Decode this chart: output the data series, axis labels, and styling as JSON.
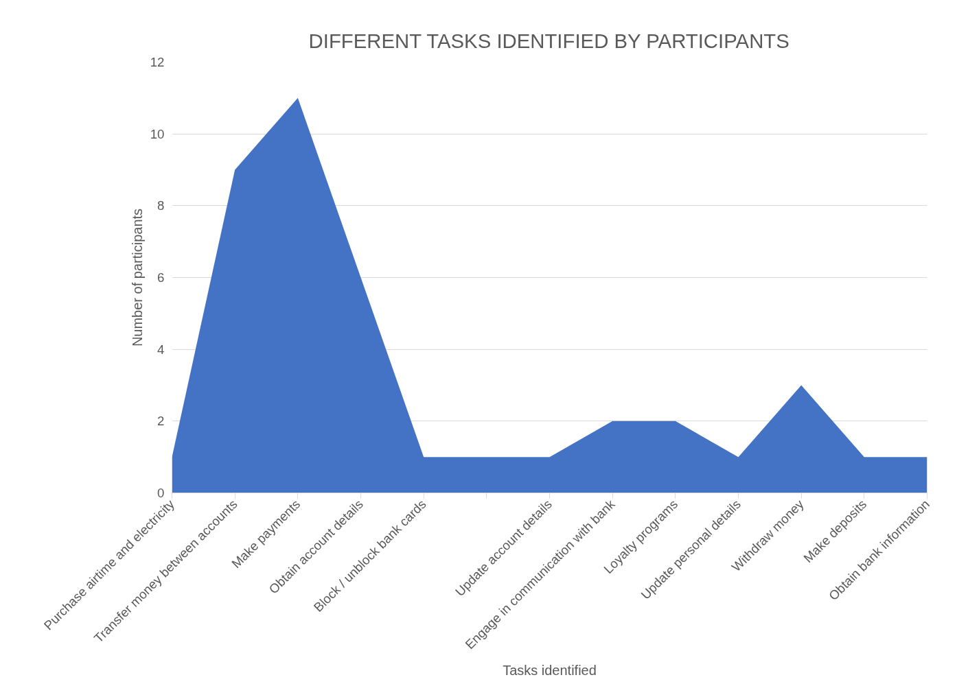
{
  "chart_data": {
    "type": "area",
    "title": "DIFFERENT TASKS IDENTIFIED BY PARTICIPANTS",
    "xlabel": "Tasks identified",
    "ylabel": "Number of participants",
    "categories": [
      "Purchase airtime and electricity",
      "Transfer money between accounts",
      "Make payments",
      "Obtain account details",
      "Block / unblock bank cards",
      null,
      "Update account details",
      "Engage in communication with bank",
      "Loyalty programs",
      "Update personal details",
      "Withdraw money",
      "Make deposits",
      "Obtain bank information"
    ],
    "series": [
      {
        "color": "#4472c4",
        "values": [
          1,
          9,
          11,
          6,
          1,
          1,
          1,
          2,
          2,
          1,
          3,
          1,
          1
        ]
      }
    ],
    "ylim": [
      0,
      12
    ],
    "yticks": [
      0,
      2,
      4,
      6,
      8,
      10,
      12
    ],
    "grid": "y"
  }
}
